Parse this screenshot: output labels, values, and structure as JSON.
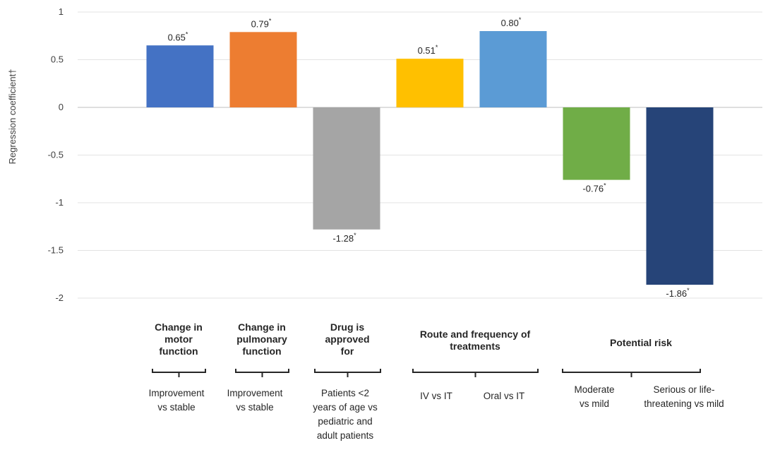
{
  "chart_data": {
    "type": "bar",
    "ylabel": "Regression coefficient†",
    "ylim": [
      -2,
      1
    ],
    "yticks": [
      "1",
      "0.5",
      "0",
      "-0.5",
      "-1",
      "-1.5",
      "-2"
    ],
    "ytick_values": [
      1,
      0.5,
      0,
      -0.5,
      -1,
      -1.5,
      -2
    ],
    "grid": true,
    "significance_marker": "*",
    "bars": [
      {
        "value": 0.65,
        "label": "0.65",
        "color": "#4472C4"
      },
      {
        "value": 0.79,
        "label": "0.79",
        "color": "#ED7D31"
      },
      {
        "value": -1.28,
        "label": "-1.28",
        "color": "#A5A5A5"
      },
      {
        "value": 0.51,
        "label": "0.51",
        "color": "#FFC000"
      },
      {
        "value": 0.8,
        "label": "0.80",
        "color": "#5B9BD5"
      },
      {
        "value": -0.76,
        "label": "-0.76",
        "color": "#70AD47"
      },
      {
        "value": -1.86,
        "label": "-1.86",
        "color": "#264478"
      }
    ],
    "groups": [
      {
        "title": [
          "Change in",
          "motor",
          "function"
        ],
        "bar_indices": [
          0
        ]
      },
      {
        "title": [
          "Change in",
          "pulmonary",
          "function"
        ],
        "bar_indices": [
          1
        ]
      },
      {
        "title": [
          "Drug is",
          "approved",
          "for"
        ],
        "bar_indices": [
          2
        ]
      },
      {
        "title": [
          "Route and frequency of",
          "treatments"
        ],
        "bar_indices": [
          3,
          4
        ]
      },
      {
        "title": [
          "Potential risk"
        ],
        "bar_indices": [
          5,
          6
        ]
      }
    ],
    "categories": [
      [
        "Improvement",
        "vs stable"
      ],
      [
        "Improvement",
        "vs stable"
      ],
      [
        "Patients <2",
        "years of age vs",
        "pediatric and",
        "adult patients"
      ],
      [
        "IV vs IT"
      ],
      [
        "Oral vs IT"
      ],
      [
        "Moderate",
        "vs mild"
      ],
      [
        "Serious or life-",
        "threatening vs mild"
      ]
    ]
  }
}
